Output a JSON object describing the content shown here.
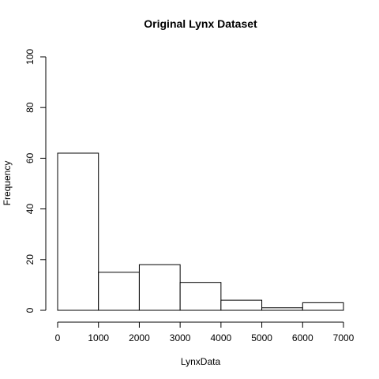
{
  "chart_data": {
    "type": "bar",
    "title": "Original Lynx Dataset",
    "xlabel": "LynxData",
    "ylabel": "Frequency",
    "bins": [
      {
        "from": 0,
        "to": 1000,
        "count": 62
      },
      {
        "from": 1000,
        "to": 2000,
        "count": 15
      },
      {
        "from": 2000,
        "to": 3000,
        "count": 18
      },
      {
        "from": 3000,
        "to": 4000,
        "count": 11
      },
      {
        "from": 4000,
        "to": 5000,
        "count": 4
      },
      {
        "from": 5000,
        "to": 6000,
        "count": 1
      },
      {
        "from": 6000,
        "to": 7000,
        "count": 3
      }
    ],
    "xlim": [
      0,
      7000
    ],
    "ylim": [
      0,
      100
    ],
    "xticks": [
      "0",
      "1000",
      "2000",
      "3000",
      "4000",
      "5000",
      "6000",
      "7000"
    ],
    "yticks": [
      "0",
      "20",
      "40",
      "60",
      "80",
      "100"
    ],
    "grid": false,
    "colors": {
      "bar_fill": "#ffffff",
      "bar_stroke": "#000000"
    }
  }
}
